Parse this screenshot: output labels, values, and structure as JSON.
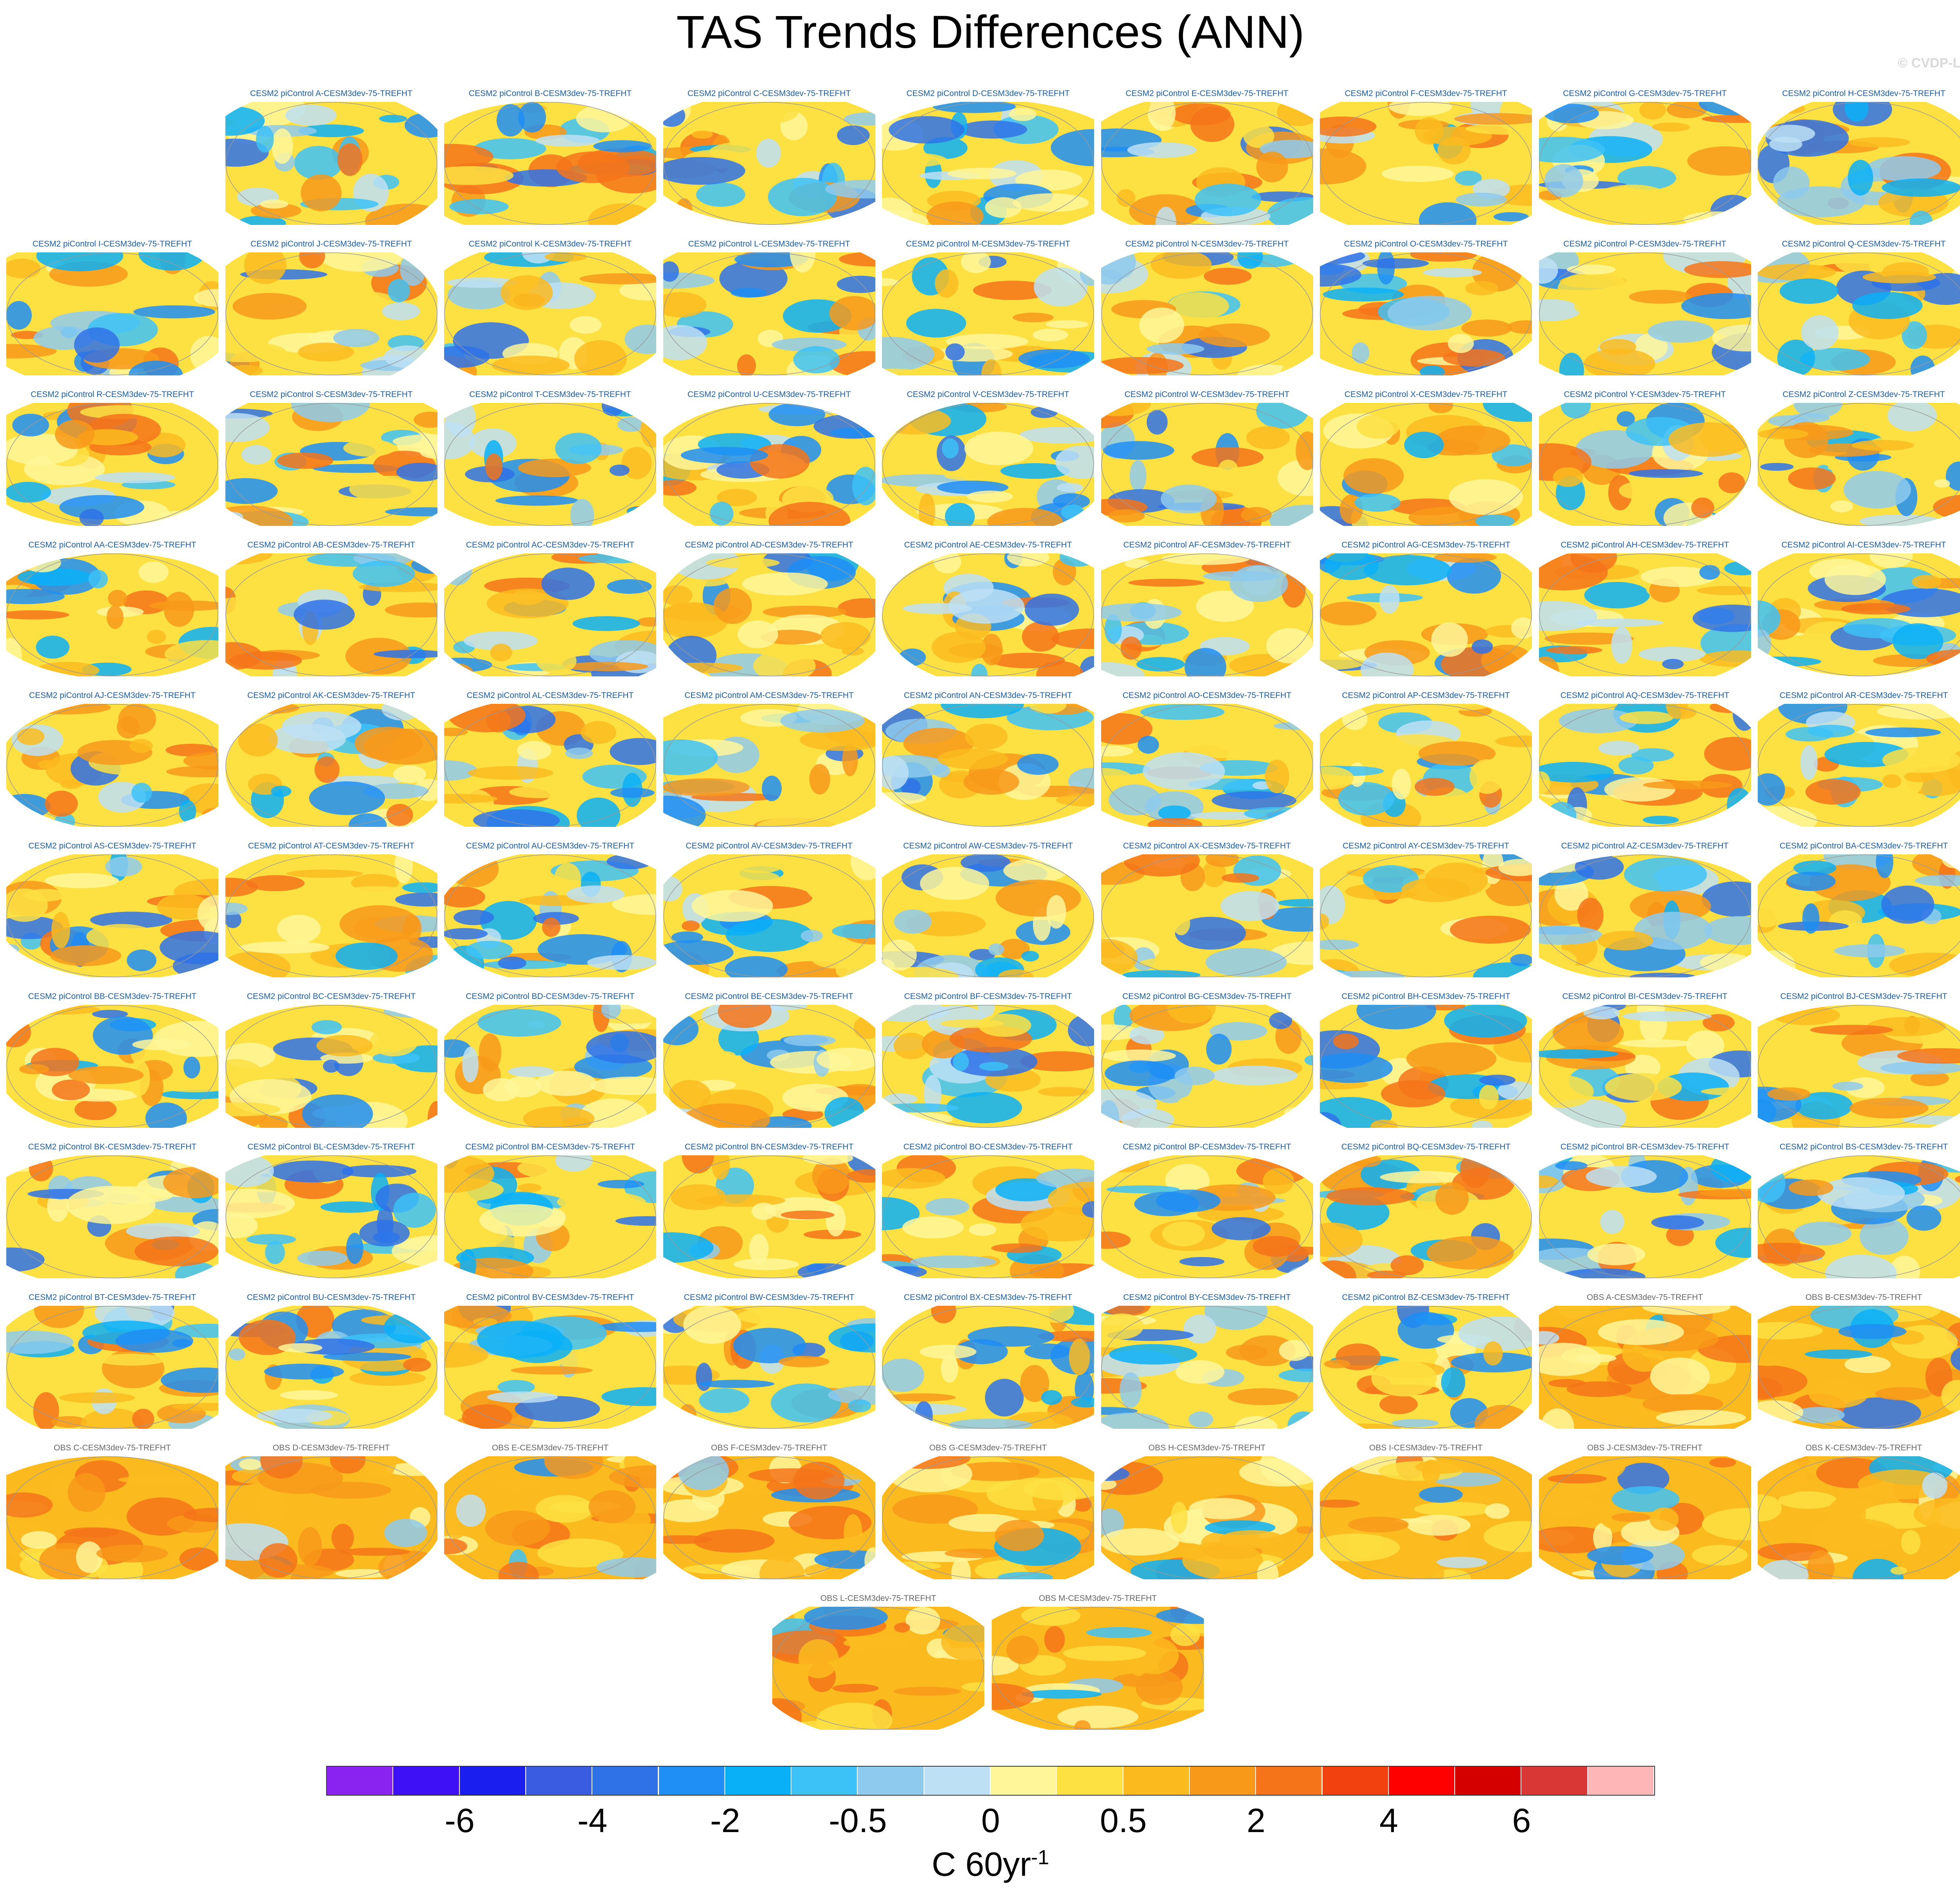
{
  "title": "TAS Trends Differences (ANN)",
  "credit": "© CVDP-LE",
  "panel_suffix": "-CESM3dev-75-TREFHT",
  "panels": [
    "CESM2 piControl A-CESM3dev-75-TREFHT",
    "CESM2 piControl B-CESM3dev-75-TREFHT",
    "CESM2 piControl C-CESM3dev-75-TREFHT",
    "CESM2 piControl D-CESM3dev-75-TREFHT",
    "CESM2 piControl E-CESM3dev-75-TREFHT",
    "CESM2 piControl F-CESM3dev-75-TREFHT",
    "CESM2 piControl G-CESM3dev-75-TREFHT",
    "CESM2 piControl H-CESM3dev-75-TREFHT",
    "CESM2 piControl I-CESM3dev-75-TREFHT",
    "CESM2 piControl J-CESM3dev-75-TREFHT",
    "CESM2 piControl K-CESM3dev-75-TREFHT",
    "CESM2 piControl L-CESM3dev-75-TREFHT",
    "CESM2 piControl M-CESM3dev-75-TREFHT",
    "CESM2 piControl N-CESM3dev-75-TREFHT",
    "CESM2 piControl O-CESM3dev-75-TREFHT",
    "CESM2 piControl P-CESM3dev-75-TREFHT",
    "CESM2 piControl Q-CESM3dev-75-TREFHT",
    "CESM2 piControl R-CESM3dev-75-TREFHT",
    "CESM2 piControl S-CESM3dev-75-TREFHT",
    "CESM2 piControl T-CESM3dev-75-TREFHT",
    "CESM2 piControl U-CESM3dev-75-TREFHT",
    "CESM2 piControl V-CESM3dev-75-TREFHT",
    "CESM2 piControl W-CESM3dev-75-TREFHT",
    "CESM2 piControl X-CESM3dev-75-TREFHT",
    "CESM2 piControl Y-CESM3dev-75-TREFHT",
    "CESM2 piControl Z-CESM3dev-75-TREFHT",
    "CESM2 piControl AA-CESM3dev-75-TREFHT",
    "CESM2 piControl AB-CESM3dev-75-TREFHT",
    "CESM2 piControl AC-CESM3dev-75-TREFHT",
    "CESM2 piControl AD-CESM3dev-75-TREFHT",
    "CESM2 piControl AE-CESM3dev-75-TREFHT",
    "CESM2 piControl AF-CESM3dev-75-TREFHT",
    "CESM2 piControl AG-CESM3dev-75-TREFHT",
    "CESM2 piControl AH-CESM3dev-75-TREFHT",
    "CESM2 piControl AI-CESM3dev-75-TREFHT",
    "CESM2 piControl AJ-CESM3dev-75-TREFHT",
    "CESM2 piControl AK-CESM3dev-75-TREFHT",
    "CESM2 piControl AL-CESM3dev-75-TREFHT",
    "CESM2 piControl AM-CESM3dev-75-TREFHT",
    "CESM2 piControl AN-CESM3dev-75-TREFHT",
    "CESM2 piControl AO-CESM3dev-75-TREFHT",
    "CESM2 piControl AP-CESM3dev-75-TREFHT",
    "CESM2 piControl AQ-CESM3dev-75-TREFHT",
    "CESM2 piControl AR-CESM3dev-75-TREFHT",
    "CESM2 piControl AS-CESM3dev-75-TREFHT",
    "CESM2 piControl AT-CESM3dev-75-TREFHT",
    "CESM2 piControl AU-CESM3dev-75-TREFHT",
    "CESM2 piControl AV-CESM3dev-75-TREFHT",
    "CESM2 piControl AW-CESM3dev-75-TREFHT",
    "CESM2 piControl AX-CESM3dev-75-TREFHT",
    "CESM2 piControl AY-CESM3dev-75-TREFHT",
    "CESM2 piControl AZ-CESM3dev-75-TREFHT",
    "CESM2 piControl BA-CESM3dev-75-TREFHT",
    "CESM2 piControl BB-CESM3dev-75-TREFHT",
    "CESM2 piControl BC-CESM3dev-75-TREFHT",
    "CESM2 piControl BD-CESM3dev-75-TREFHT",
    "CESM2 piControl BE-CESM3dev-75-TREFHT",
    "CESM2 piControl BF-CESM3dev-75-TREFHT",
    "CESM2 piControl BG-CESM3dev-75-TREFHT",
    "CESM2 piControl BH-CESM3dev-75-TREFHT",
    "CESM2 piControl BI-CESM3dev-75-TREFHT",
    "CESM2 piControl BJ-CESM3dev-75-TREFHT",
    "CESM2 piControl BK-CESM3dev-75-TREFHT",
    "CESM2 piControl BL-CESM3dev-75-TREFHT",
    "CESM2 piControl BM-CESM3dev-75-TREFHT",
    "CESM2 piControl BN-CESM3dev-75-TREFHT",
    "CESM2 piControl BO-CESM3dev-75-TREFHT",
    "CESM2 piControl BP-CESM3dev-75-TREFHT",
    "CESM2 piControl BQ-CESM3dev-75-TREFHT",
    "CESM2 piControl BR-CESM3dev-75-TREFHT",
    "CESM2 piControl BS-CESM3dev-75-TREFHT",
    "CESM2 piControl BT-CESM3dev-75-TREFHT",
    "CESM2 piControl BU-CESM3dev-75-TREFHT",
    "CESM2 piControl BV-CESM3dev-75-TREFHT",
    "CESM2 piControl BW-CESM3dev-75-TREFHT",
    "CESM2 piControl BX-CESM3dev-75-TREFHT",
    "CESM2 piControl BY-CESM3dev-75-TREFHT",
    "CESM2 piControl BZ-CESM3dev-75-TREFHT",
    "OBS A-CESM3dev-75-TREFHT",
    "OBS B-CESM3dev-75-TREFHT",
    "OBS C-CESM3dev-75-TREFHT",
    "OBS D-CESM3dev-75-TREFHT",
    "OBS E-CESM3dev-75-TREFHT",
    "OBS F-CESM3dev-75-TREFHT",
    "OBS G-CESM3dev-75-TREFHT",
    "OBS H-CESM3dev-75-TREFHT",
    "OBS I-CESM3dev-75-TREFHT",
    "OBS J-CESM3dev-75-TREFHT",
    "OBS K-CESM3dev-75-TREFHT",
    "OBS L-CESM3dev-75-TREFHT",
    "OBS M-CESM3dev-75-TREFHT"
  ],
  "chart_data": {
    "type": "heatmap",
    "title": "TAS Trends Differences (ANN)",
    "projection": "global map panels",
    "variable": "TREFHT",
    "season": "ANN",
    "colorbar": {
      "unit_base": "C 60yr",
      "unit_exp": "-1",
      "levels": [
        -8,
        -7,
        -6,
        -5,
        -4,
        -3,
        -2,
        -1,
        -0.5,
        -0.25,
        0,
        0.25,
        0.5,
        1,
        2,
        3,
        4,
        5,
        6,
        7
      ],
      "tick_labels": [
        "-6",
        "-4",
        "-2",
        "-0.5",
        "0",
        "0.5",
        "2",
        "4",
        "6"
      ],
      "tick_level_index": [
        2,
        4,
        6,
        8,
        10,
        12,
        14,
        16,
        18
      ],
      "colors": [
        "#8a22f0",
        "#3d10f5",
        "#1a1ff0",
        "#3a5ce0",
        "#2f72e8",
        "#1f8ef5",
        "#0ab0f7",
        "#3dc2f7",
        "#8ecaed",
        "#bde0f4",
        "#fff69a",
        "#fde143",
        "#fbbb1f",
        "#f8991a",
        "#f5741a",
        "#f2410f",
        "#ff0000",
        "#d40000",
        "#d93636",
        "#ffb6b6"
      ]
    }
  }
}
